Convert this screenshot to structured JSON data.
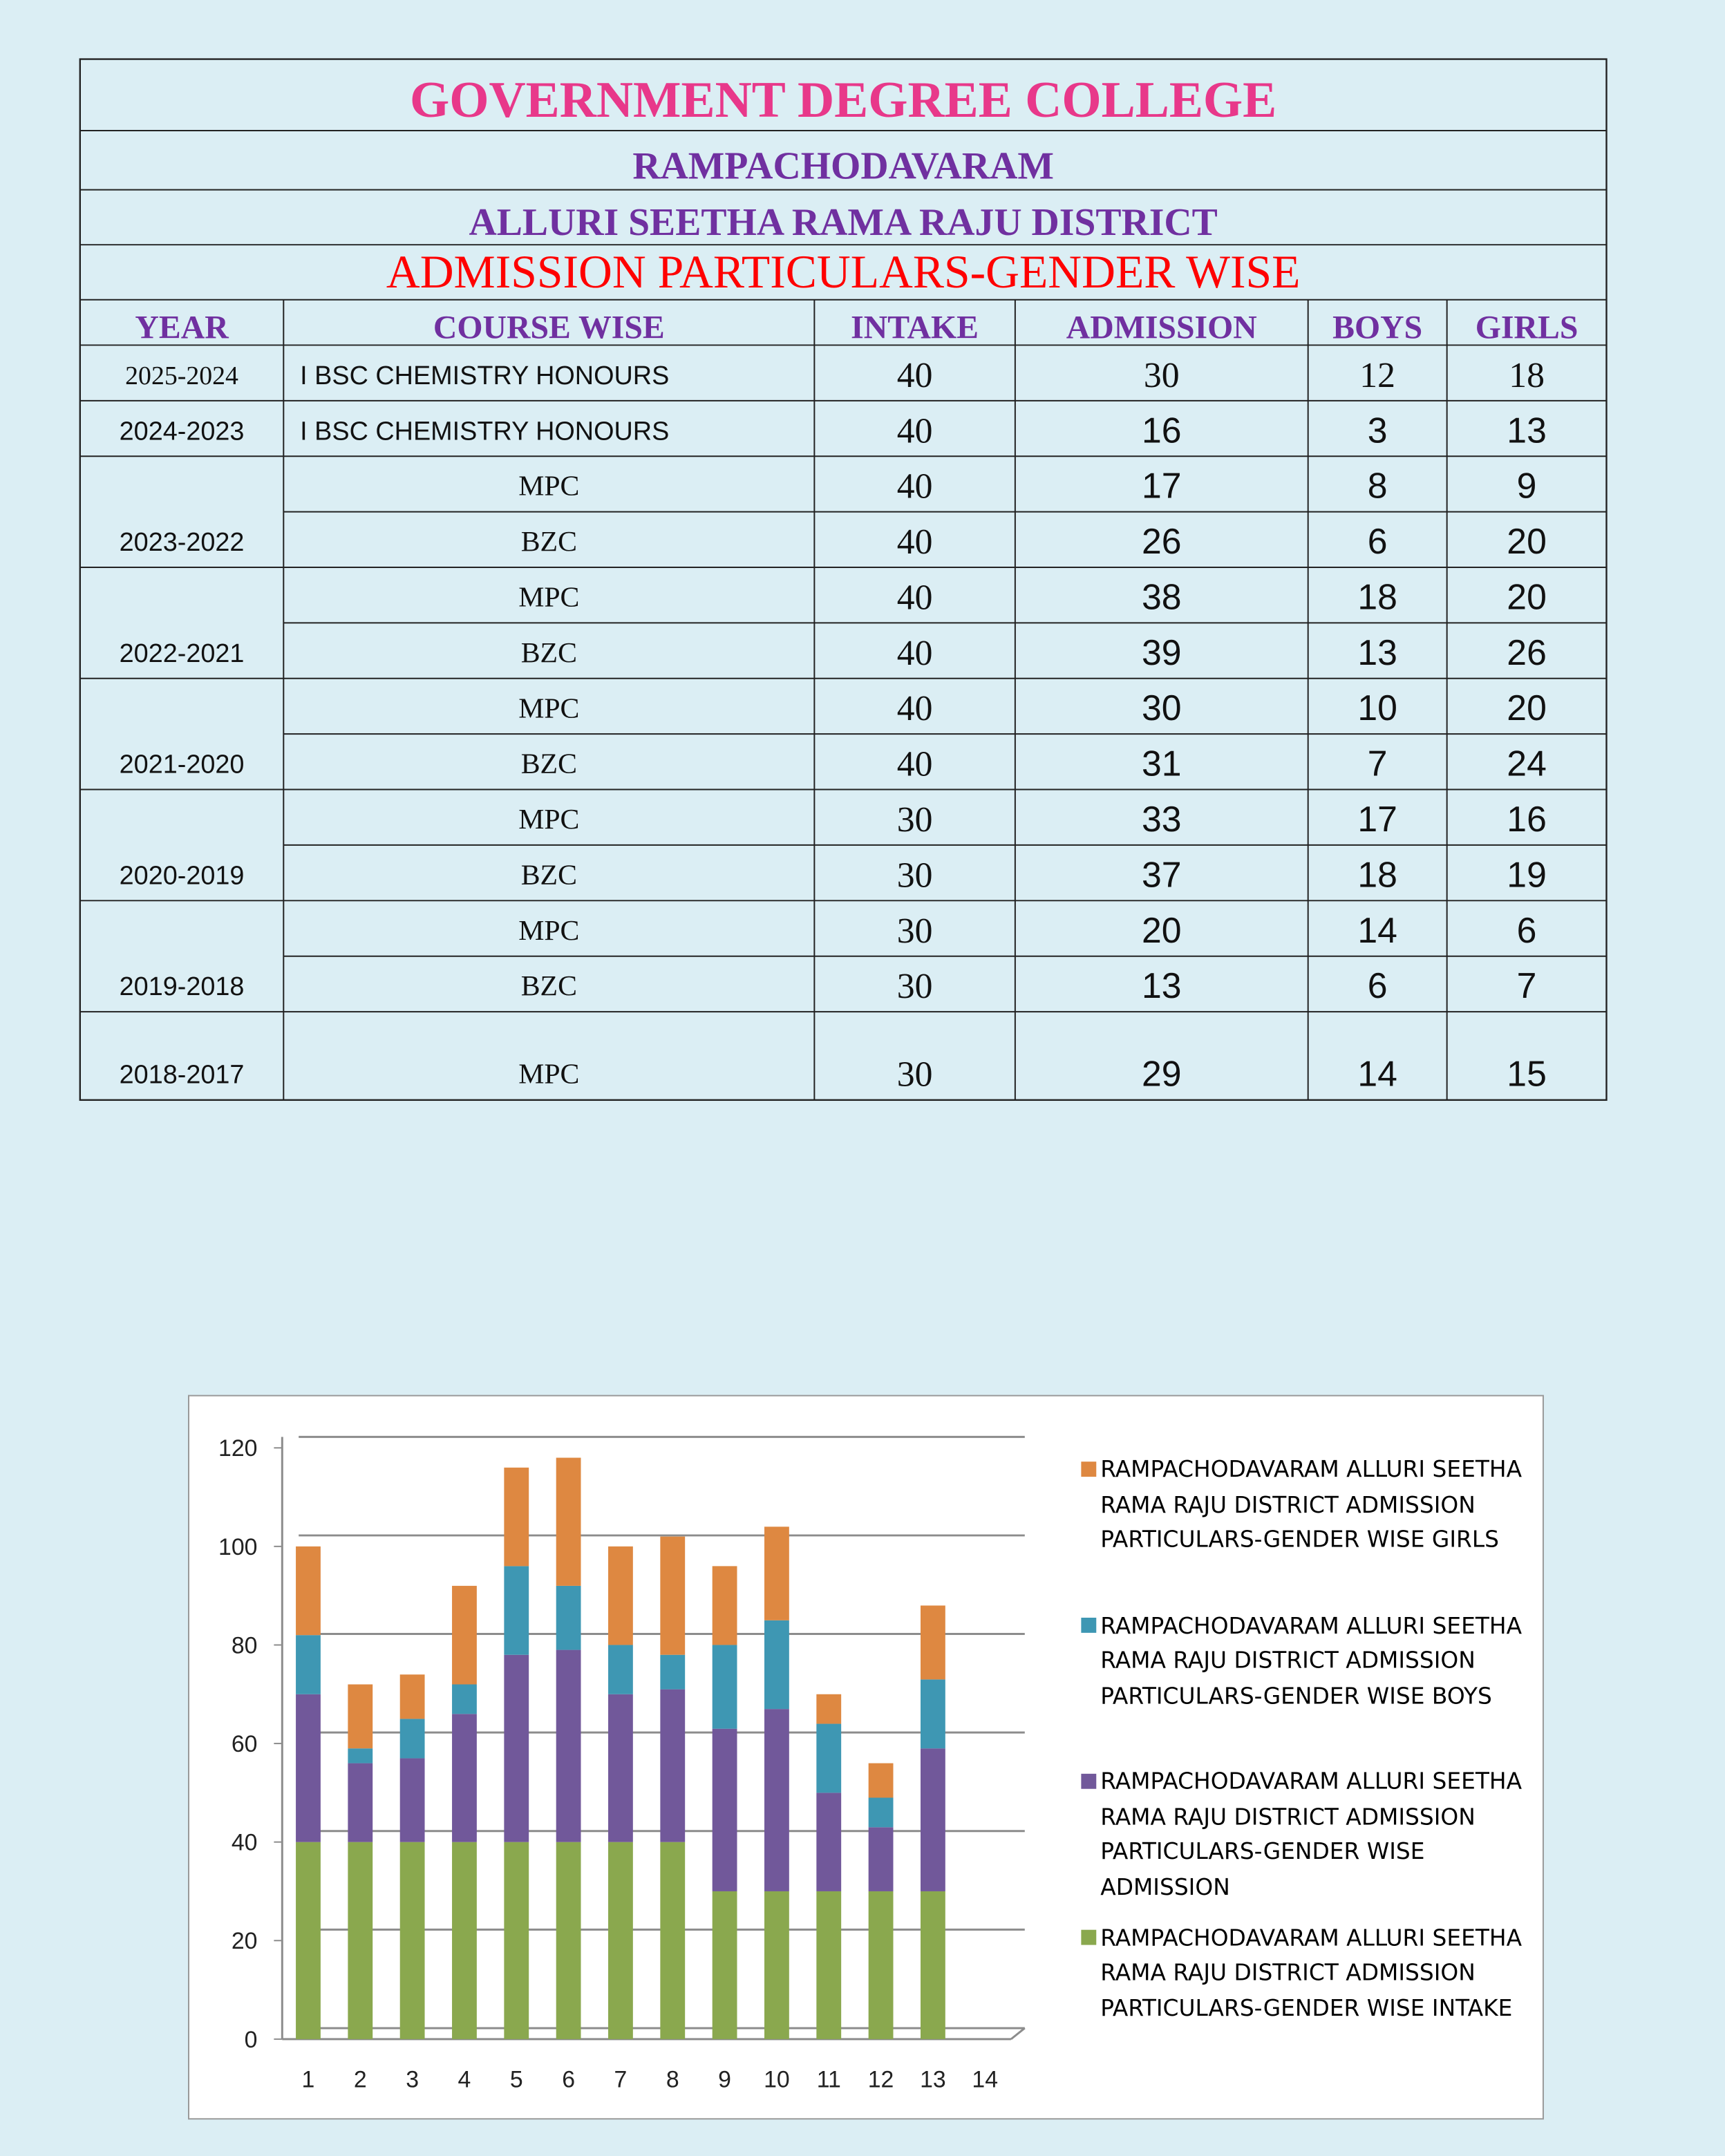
{
  "header": {
    "title": "GOVERNMENT DEGREE COLLEGE",
    "place": "RAMPACHODAVARAM",
    "district": "ALLURI SEETHA RAMA RAJU DISTRICT",
    "subtitle": "ADMISSION PARTICULARS-GENDER WISE"
  },
  "table": {
    "columns": [
      "YEAR",
      "COURSE WISE",
      "INTAKE",
      "ADMISSION",
      "BOYS",
      "GIRLS"
    ],
    "groups": [
      {
        "year": "2025-2024",
        "rows": [
          [
            "I BSC CHEMISTRY HONOURS",
            40,
            30,
            12,
            18
          ]
        ]
      },
      {
        "year": "2024-2023",
        "rows": [
          [
            "I BSC CHEMISTRY HONOURS",
            40,
            16,
            3,
            13
          ]
        ]
      },
      {
        "year": "2023-2022",
        "rows": [
          [
            "MPC",
            40,
            17,
            8,
            9
          ],
          [
            "BZC",
            40,
            26,
            6,
            20
          ]
        ]
      },
      {
        "year": "2022-2021",
        "rows": [
          [
            "MPC",
            40,
            38,
            18,
            20
          ],
          [
            "BZC",
            40,
            39,
            13,
            26
          ]
        ]
      },
      {
        "year": "2021-2020",
        "rows": [
          [
            "MPC",
            40,
            30,
            10,
            20
          ],
          [
            "BZC",
            40,
            31,
            7,
            24
          ]
        ]
      },
      {
        "year": "2020-2019",
        "rows": [
          [
            "MPC",
            30,
            33,
            17,
            16
          ],
          [
            "BZC",
            30,
            37,
            18,
            19
          ]
        ]
      },
      {
        "year": "2019-2018",
        "rows": [
          [
            "MPC",
            30,
            20,
            14,
            6
          ],
          [
            "BZC",
            30,
            13,
            6,
            7
          ]
        ]
      },
      {
        "year": "2018-2017",
        "rows": [
          [
            "MPC",
            30,
            29,
            14,
            15
          ]
        ]
      }
    ]
  },
  "chart": {
    "type": "bar",
    "stacked": true,
    "categories": [
      1,
      2,
      3,
      4,
      5,
      6,
      7,
      8,
      9,
      10,
      11,
      12,
      13,
      14
    ],
    "series": [
      {
        "name": "RAMPACHODAVARAM ALLURI SEETHA RAMA RAJU DISTRICT ADMISSION PARTICULARS-GENDER WISE INTAKE",
        "color": "#8aa84e",
        "values": [
          40,
          40,
          40,
          40,
          40,
          40,
          40,
          40,
          30,
          30,
          30,
          30,
          30,
          null
        ]
      },
      {
        "name": "RAMPACHODAVARAM ALLURI SEETHA RAMA RAJU DISTRICT ADMISSION PARTICULARS-GENDER WISE ADMISSION",
        "color": "#71589a",
        "values": [
          30,
          16,
          17,
          26,
          38,
          39,
          30,
          31,
          33,
          37,
          20,
          13,
          29,
          null
        ]
      },
      {
        "name": "RAMPACHODAVARAM ALLURI SEETHA RAMA RAJU DISTRICT ADMISSION PARTICULARS-GENDER WISE BOYS",
        "color": "#3e97b3",
        "values": [
          12,
          3,
          8,
          6,
          18,
          13,
          10,
          7,
          17,
          18,
          14,
          6,
          14,
          null
        ]
      },
      {
        "name": "RAMPACHODAVARAM ALLURI SEETHA RAMA RAJU DISTRICT ADMISSION PARTICULARS-GENDER WISE GIRLS",
        "color": "#de8841",
        "values": [
          18,
          13,
          9,
          20,
          20,
          26,
          20,
          24,
          16,
          19,
          6,
          7,
          15,
          null
        ]
      }
    ],
    "ylim": [
      0,
      120
    ],
    "yticks": [
      0,
      20,
      40,
      60,
      80,
      100,
      120
    ],
    "grid": true,
    "legend": "right"
  }
}
